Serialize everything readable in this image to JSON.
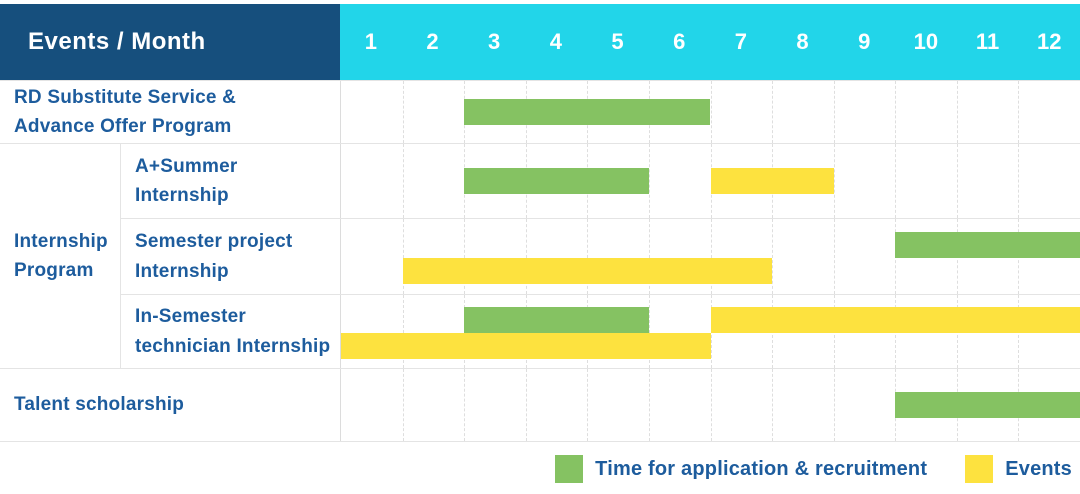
{
  "header": {
    "title": "Events / Month",
    "months": [
      "1",
      "2",
      "3",
      "4",
      "5",
      "6",
      "7",
      "8",
      "9",
      "10",
      "11",
      "12"
    ]
  },
  "legend": {
    "items": [
      {
        "label": "Time for application & recruitment",
        "color": "#85c262"
      },
      {
        "label": "Events",
        "color": "#fde23f"
      }
    ]
  },
  "colors": {
    "header_bg": "#164f7d",
    "months_bg": "#22d5e9",
    "label_text": "#1d5c9d",
    "grid_line": "#e4e4e4",
    "green": "#85c262",
    "yellow": "#fde23f"
  },
  "chart_data": {
    "type": "gantt",
    "x_axis": {
      "label": "Month",
      "ticks": [
        1,
        2,
        3,
        4,
        5,
        6,
        7,
        8,
        9,
        10,
        11,
        12
      ],
      "range": [
        1,
        12
      ],
      "grid": true
    },
    "legend_position": "bottom-right",
    "group_label": {
      "label": "Internship Program",
      "lines": [
        "Internship",
        "Program"
      ]
    },
    "rows": [
      {
        "label": "RD Substitute Service & Advance Offer Program",
        "lines": [
          "RD Substitute Service &",
          "Advance Offer Program"
        ],
        "group": null,
        "bars": [
          {
            "series": "Time for application & recruitment",
            "start_month": 3,
            "end_month": 6,
            "lane": "center"
          }
        ]
      },
      {
        "label": "A+Summer Internship",
        "lines": [
          "A+Summer",
          "Internship"
        ],
        "group": "Internship Program",
        "bars": [
          {
            "series": "Time for application & recruitment",
            "start_month": 3,
            "end_month": 5,
            "lane": "center"
          },
          {
            "series": "Events",
            "start_month": 7,
            "end_month": 8,
            "lane": "center"
          }
        ]
      },
      {
        "label": "Semester project Internship",
        "lines": [
          "Semester project",
          "Internship"
        ],
        "group": "Internship Program",
        "bars": [
          {
            "series": "Time for application & recruitment",
            "start_month": 10,
            "end_month": 12,
            "lane": "top"
          },
          {
            "series": "Events",
            "start_month": 2,
            "end_month": 7,
            "lane": "bottom"
          }
        ]
      },
      {
        "label": "In-Semester technician Internship",
        "lines": [
          "In-Semester",
          "technician Internship"
        ],
        "group": "Internship Program",
        "bars": [
          {
            "series": "Time for application & recruitment",
            "start_month": 3,
            "end_month": 5,
            "lane": "top"
          },
          {
            "series": "Events",
            "start_month": 7,
            "end_month": 12,
            "lane": "top"
          },
          {
            "series": "Events",
            "start_month": 1,
            "end_month": 6,
            "lane": "bottom"
          }
        ]
      },
      {
        "label": "Talent scholarship",
        "lines": [
          "Talent scholarship"
        ],
        "group": null,
        "bars": [
          {
            "series": "Time for application & recruitment",
            "start_month": 10,
            "end_month": 12,
            "lane": "center"
          }
        ]
      }
    ]
  }
}
